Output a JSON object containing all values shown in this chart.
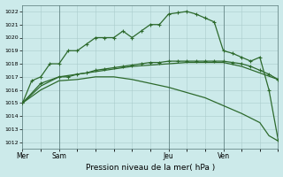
{
  "background_color": "#cceaea",
  "grid_color": "#aacccc",
  "line_color": "#2d6a2d",
  "title": "Pression niveau de la mer( hPa )",
  "ylim": [
    1011.5,
    1022.5
  ],
  "xlim": [
    0,
    56
  ],
  "yticks": [
    1012,
    1013,
    1014,
    1015,
    1016,
    1017,
    1018,
    1019,
    1020,
    1021,
    1022
  ],
  "xtick_pos": [
    0,
    8,
    32,
    44
  ],
  "xtick_labels": [
    "Mer",
    "Sam",
    "Jeu",
    "Ven"
  ],
  "vline_pos": [
    8,
    32,
    44
  ],
  "line1_x": [
    0,
    2,
    4,
    6,
    8,
    10,
    12,
    14,
    16,
    18,
    20,
    22,
    24,
    26,
    28,
    30,
    32,
    34,
    36,
    38,
    40,
    42,
    44,
    46,
    48,
    50,
    52,
    54,
    56
  ],
  "line1_y": [
    1015,
    1016.7,
    1017.0,
    1018.0,
    1018.0,
    1019.0,
    1019.0,
    1019.5,
    1020.0,
    1020.0,
    1020.0,
    1020.5,
    1020.0,
    1020.5,
    1021.0,
    1021.0,
    1021.8,
    1021.9,
    1022.0,
    1021.8,
    1021.5,
    1021.2,
    1019.0,
    1018.8,
    1018.5,
    1018.2,
    1018.5,
    1016.0,
    1012.2
  ],
  "line1_marker": true,
  "line2_x": [
    0,
    4,
    8,
    10,
    12,
    14,
    16,
    18,
    20,
    22,
    24,
    26,
    28,
    30,
    32,
    34,
    36,
    38,
    40,
    42,
    44,
    46,
    48,
    50,
    52,
    54,
    56
  ],
  "line2_y": [
    1015,
    1016.5,
    1017.0,
    1017.0,
    1017.2,
    1017.3,
    1017.5,
    1017.6,
    1017.7,
    1017.8,
    1017.9,
    1018.0,
    1018.1,
    1018.1,
    1018.2,
    1018.2,
    1018.2,
    1018.2,
    1018.2,
    1018.2,
    1018.2,
    1018.1,
    1018.0,
    1017.8,
    1017.5,
    1017.2,
    1016.8
  ],
  "line2_marker": true,
  "line3_x": [
    0,
    4,
    8,
    12,
    16,
    20,
    24,
    28,
    32,
    36,
    40,
    44,
    48,
    52,
    56
  ],
  "line3_y": [
    1015,
    1016.3,
    1017.0,
    1017.2,
    1017.4,
    1017.6,
    1017.8,
    1017.9,
    1018.0,
    1018.1,
    1018.1,
    1018.1,
    1017.8,
    1017.3,
    1016.8
  ],
  "line3_marker": false,
  "line4_x": [
    0,
    4,
    8,
    12,
    16,
    20,
    24,
    28,
    32,
    36,
    40,
    44,
    48,
    52,
    54,
    56
  ],
  "line4_y": [
    1015,
    1016.0,
    1016.7,
    1016.8,
    1017.0,
    1017.0,
    1016.8,
    1016.5,
    1016.2,
    1015.8,
    1015.4,
    1014.8,
    1014.2,
    1013.5,
    1012.5,
    1012.1
  ],
  "line4_marker": false
}
